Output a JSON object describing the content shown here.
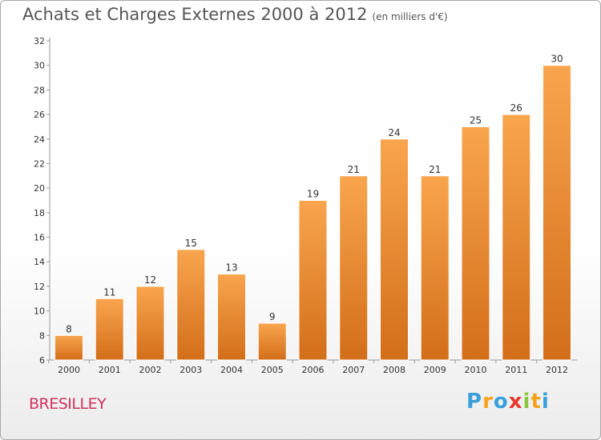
{
  "title": "Achats et Charges Externes 2000 à 2012",
  "subtitle": "(en milliers d'€)",
  "commune": "BRESILLEY",
  "logo": {
    "text": "Proxiti",
    "letters": [
      {
        "ch": "P",
        "color": "#3aa0dc"
      },
      {
        "ch": "r",
        "color": "#f7a21b"
      },
      {
        "ch": "o",
        "color": "#3aa0dc"
      },
      {
        "ch": "x",
        "color": "#e8392f"
      },
      {
        "ch": "i",
        "color": "#8cc63f"
      },
      {
        "ch": "t",
        "color": "#f7a21b"
      },
      {
        "ch": "i",
        "color": "#3aa0dc"
      }
    ]
  },
  "chart_data": {
    "type": "bar",
    "title": "Achats et Charges Externes 2000 à 2012",
    "subtitle": "(en milliers d'€)",
    "categories": [
      "2000",
      "2001",
      "2002",
      "2003",
      "2004",
      "2005",
      "2006",
      "2007",
      "2008",
      "2009",
      "2010",
      "2011",
      "2012"
    ],
    "values": [
      8,
      11,
      12,
      15,
      13,
      9,
      19,
      21,
      24,
      21,
      25,
      26,
      30
    ],
    "ylim": [
      6,
      32
    ],
    "yticks": [
      6,
      8,
      10,
      12,
      14,
      16,
      18,
      20,
      22,
      24,
      26,
      28,
      30,
      32
    ],
    "grid": false,
    "bar_color_light": "#f9a54e",
    "bar_color_dark": "#d36e1a"
  }
}
